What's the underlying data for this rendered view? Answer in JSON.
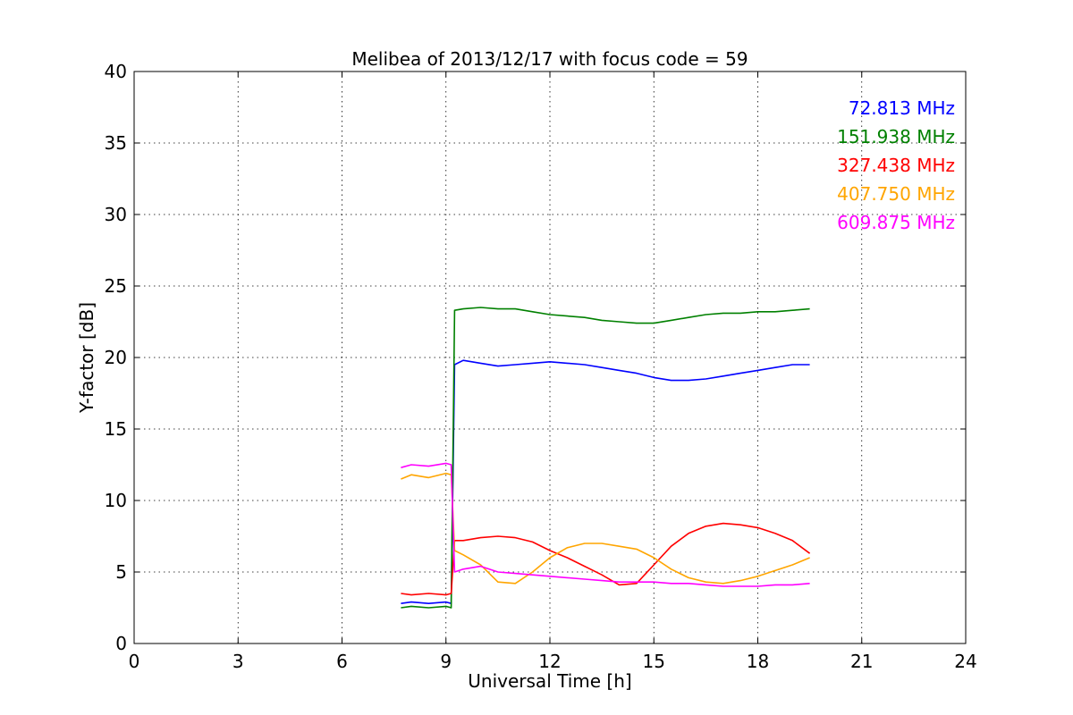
{
  "chart_data": {
    "type": "line",
    "title": "Melibea of 2013/12/17 with focus code = 59",
    "xlabel": "Universal Time [h]",
    "ylabel": "Y-factor [dB]",
    "xlim": [
      0,
      24
    ],
    "ylim": [
      0,
      40
    ],
    "xticks": [
      0,
      3,
      6,
      9,
      12,
      15,
      18,
      21,
      24
    ],
    "yticks": [
      0,
      5,
      10,
      15,
      20,
      25,
      30,
      35,
      40
    ],
    "grid": true,
    "legend_position": "top-right",
    "series": [
      {
        "name": "72.813 MHz",
        "color": "#0000ff",
        "points": [
          [
            7.7,
            2.8
          ],
          [
            8.0,
            2.9
          ],
          [
            8.5,
            2.8
          ],
          [
            9.0,
            2.9
          ],
          [
            9.15,
            2.8
          ],
          [
            9.25,
            19.5
          ],
          [
            9.5,
            19.8
          ],
          [
            10.0,
            19.6
          ],
          [
            10.5,
            19.4
          ],
          [
            11.0,
            19.5
          ],
          [
            11.5,
            19.6
          ],
          [
            12.0,
            19.7
          ],
          [
            12.5,
            19.6
          ],
          [
            13.0,
            19.5
          ],
          [
            13.5,
            19.3
          ],
          [
            14.0,
            19.1
          ],
          [
            14.5,
            18.9
          ],
          [
            15.0,
            18.6
          ],
          [
            15.5,
            18.4
          ],
          [
            16.0,
            18.4
          ],
          [
            16.5,
            18.5
          ],
          [
            17.0,
            18.7
          ],
          [
            17.5,
            18.9
          ],
          [
            18.0,
            19.1
          ],
          [
            18.5,
            19.3
          ],
          [
            19.0,
            19.5
          ],
          [
            19.5,
            19.5
          ]
        ]
      },
      {
        "name": "151.938 MHz",
        "color": "#008000",
        "points": [
          [
            7.7,
            2.5
          ],
          [
            8.0,
            2.6
          ],
          [
            8.5,
            2.5
          ],
          [
            9.0,
            2.6
          ],
          [
            9.15,
            2.5
          ],
          [
            9.25,
            23.3
          ],
          [
            9.5,
            23.4
          ],
          [
            10.0,
            23.5
          ],
          [
            10.5,
            23.4
          ],
          [
            11.0,
            23.4
          ],
          [
            11.5,
            23.2
          ],
          [
            12.0,
            23.0
          ],
          [
            12.5,
            22.9
          ],
          [
            13.0,
            22.8
          ],
          [
            13.5,
            22.6
          ],
          [
            14.0,
            22.5
          ],
          [
            14.5,
            22.4
          ],
          [
            15.0,
            22.4
          ],
          [
            15.5,
            22.6
          ],
          [
            16.0,
            22.8
          ],
          [
            16.5,
            23.0
          ],
          [
            17.0,
            23.1
          ],
          [
            17.5,
            23.1
          ],
          [
            18.0,
            23.2
          ],
          [
            18.5,
            23.2
          ],
          [
            19.0,
            23.3
          ],
          [
            19.5,
            23.4
          ]
        ]
      },
      {
        "name": "327.438 MHz",
        "color": "#ff0000",
        "points": [
          [
            7.7,
            3.5
          ],
          [
            8.0,
            3.4
          ],
          [
            8.5,
            3.5
          ],
          [
            9.0,
            3.4
          ],
          [
            9.15,
            3.5
          ],
          [
            9.25,
            7.2
          ],
          [
            9.5,
            7.2
          ],
          [
            10.0,
            7.4
          ],
          [
            10.5,
            7.5
          ],
          [
            11.0,
            7.4
          ],
          [
            11.5,
            7.1
          ],
          [
            12.0,
            6.5
          ],
          [
            12.5,
            6.0
          ],
          [
            13.0,
            5.4
          ],
          [
            13.5,
            4.8
          ],
          [
            14.0,
            4.1
          ],
          [
            14.5,
            4.2
          ],
          [
            15.0,
            5.5
          ],
          [
            15.5,
            6.8
          ],
          [
            16.0,
            7.7
          ],
          [
            16.5,
            8.2
          ],
          [
            17.0,
            8.4
          ],
          [
            17.5,
            8.3
          ],
          [
            18.0,
            8.1
          ],
          [
            18.5,
            7.7
          ],
          [
            19.0,
            7.2
          ],
          [
            19.5,
            6.3
          ]
        ]
      },
      {
        "name": "407.750 MHz",
        "color": "#ffa500",
        "points": [
          [
            7.7,
            11.5
          ],
          [
            8.0,
            11.8
          ],
          [
            8.5,
            11.6
          ],
          [
            9.0,
            11.9
          ],
          [
            9.15,
            11.8
          ],
          [
            9.25,
            6.5
          ],
          [
            9.5,
            6.2
          ],
          [
            10.0,
            5.5
          ],
          [
            10.5,
            4.3
          ],
          [
            11.0,
            4.2
          ],
          [
            11.5,
            5.0
          ],
          [
            12.0,
            6.0
          ],
          [
            12.5,
            6.7
          ],
          [
            13.0,
            7.0
          ],
          [
            13.5,
            7.0
          ],
          [
            14.0,
            6.8
          ],
          [
            14.5,
            6.6
          ],
          [
            15.0,
            6.0
          ],
          [
            15.5,
            5.2
          ],
          [
            16.0,
            4.6
          ],
          [
            16.5,
            4.3
          ],
          [
            17.0,
            4.2
          ],
          [
            17.5,
            4.4
          ],
          [
            18.0,
            4.7
          ],
          [
            18.5,
            5.1
          ],
          [
            19.0,
            5.5
          ],
          [
            19.5,
            6.0
          ]
        ]
      },
      {
        "name": "609.875 MHz",
        "color": "#ff00ff",
        "points": [
          [
            7.7,
            12.3
          ],
          [
            8.0,
            12.5
          ],
          [
            8.5,
            12.4
          ],
          [
            9.0,
            12.6
          ],
          [
            9.15,
            12.5
          ],
          [
            9.25,
            5.0
          ],
          [
            9.5,
            5.2
          ],
          [
            10.0,
            5.4
          ],
          [
            10.5,
            5.0
          ],
          [
            11.0,
            4.9
          ],
          [
            11.5,
            4.8
          ],
          [
            12.0,
            4.7
          ],
          [
            12.5,
            4.6
          ],
          [
            13.0,
            4.5
          ],
          [
            13.5,
            4.4
          ],
          [
            14.0,
            4.3
          ],
          [
            14.5,
            4.3
          ],
          [
            15.0,
            4.3
          ],
          [
            15.5,
            4.2
          ],
          [
            16.0,
            4.2
          ],
          [
            16.5,
            4.1
          ],
          [
            17.0,
            4.0
          ],
          [
            17.5,
            4.0
          ],
          [
            18.0,
            4.0
          ],
          [
            18.5,
            4.1
          ],
          [
            19.0,
            4.1
          ],
          [
            19.5,
            4.2
          ]
        ]
      }
    ]
  }
}
